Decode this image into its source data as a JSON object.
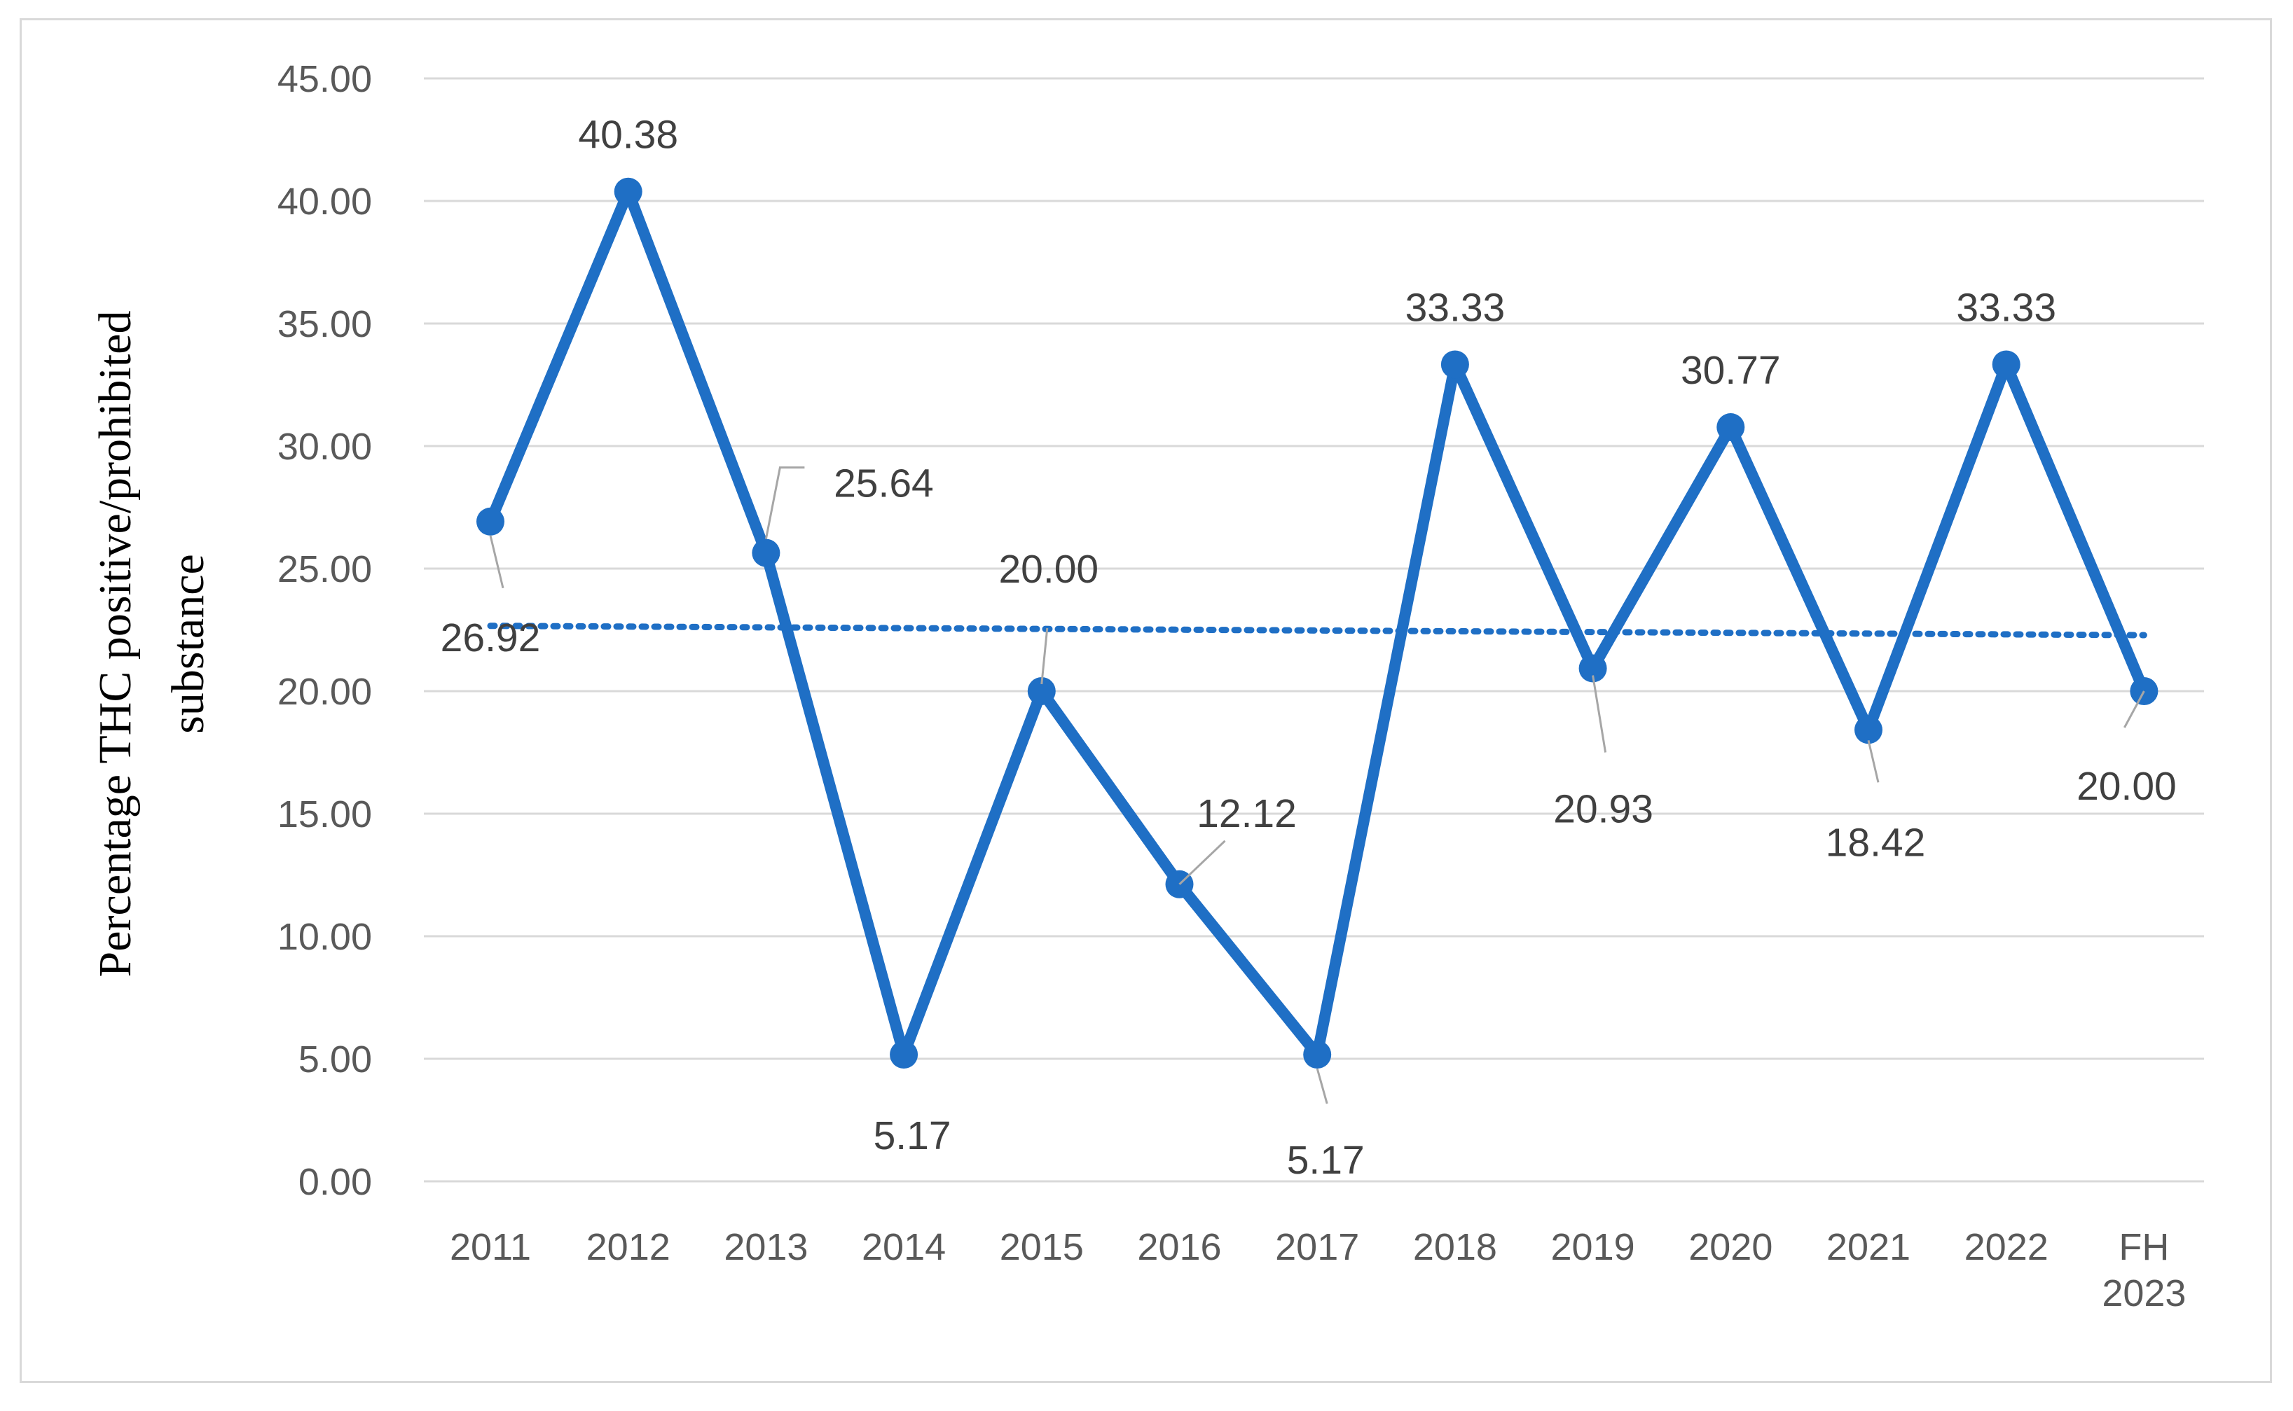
{
  "chart_data": {
    "type": "line",
    "title": "",
    "xlabel": "",
    "ylabel": "Percentage THC positive/prohibited substance",
    "ylabel_lines": [
      "Percentage THC positive/prohibited",
      "substance"
    ],
    "categories": [
      "2011",
      "2012",
      "2013",
      "2014",
      "2015",
      "2016",
      "2017",
      "2018",
      "2019",
      "2020",
      "2021",
      "2022",
      "FH 2023"
    ],
    "category_lines": [
      [
        "2011"
      ],
      [
        "2012"
      ],
      [
        "2013"
      ],
      [
        "2014"
      ],
      [
        "2015"
      ],
      [
        "2016"
      ],
      [
        "2017"
      ],
      [
        "2018"
      ],
      [
        "2019"
      ],
      [
        "2020"
      ],
      [
        "2021"
      ],
      [
        "2022"
      ],
      [
        "FH",
        "2023"
      ]
    ],
    "series": [
      {
        "values": [
          26.92,
          40.38,
          25.64,
          5.17,
          20.0,
          12.12,
          5.17,
          33.33,
          20.93,
          30.77,
          18.42,
          33.33,
          20.0
        ],
        "data_labels": [
          "26.92",
          "40.38",
          "25.64",
          "5.17",
          "20.00",
          "12.12",
          "5.17",
          "33.33",
          "20.93",
          "30.77",
          "18.42",
          "33.33",
          "20.00"
        ],
        "color": "#1f6fc5"
      }
    ],
    "trendline": {
      "type": "linear",
      "style": "dotted",
      "color": "#1f6fc5"
    },
    "ylim": [
      0,
      45
    ],
    "yticks": [
      "0.00",
      "5.00",
      "10.00",
      "15.00",
      "20.00",
      "25.00",
      "30.00",
      "35.00",
      "40.00",
      "45.00"
    ],
    "grid": true,
    "legend": "none",
    "colors": {
      "series": "#1f6fc5",
      "grid": "#d9d9d9",
      "tick_text": "#595959",
      "label_text": "#404040",
      "leader": "#a6a6a6"
    }
  }
}
